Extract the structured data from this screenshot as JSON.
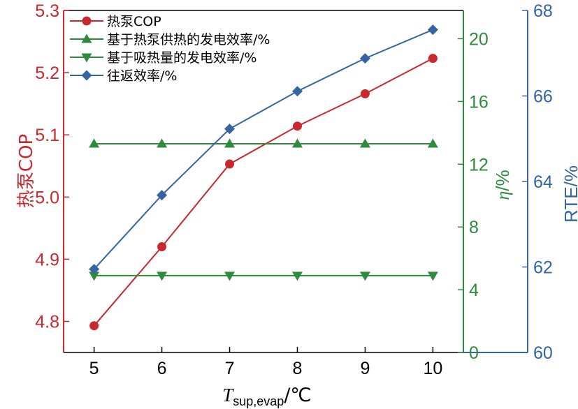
{
  "chart_data": {
    "type": "line",
    "x": [
      5,
      6,
      7,
      8,
      9,
      10
    ],
    "xlabel": {
      "symbol": "T",
      "subscript": "sup,evap",
      "unit": "/℃"
    },
    "xlim": [
      4.55,
      10.45
    ],
    "axes": [
      {
        "id": "cop",
        "label": "热泵COP",
        "color": "#c8282e",
        "lim": [
          4.75,
          5.3
        ],
        "ticks": [
          4.8,
          4.9,
          5.0,
          5.1,
          5.2,
          5.3
        ],
        "tick_labels": [
          "4.8",
          "4.9",
          "5.0",
          "5.1",
          "5.2",
          "5.3"
        ]
      },
      {
        "id": "eta",
        "label_symbol": "η",
        "label_unit": "/%",
        "color": "#2e8b3e",
        "lim": [
          0,
          21.8
        ],
        "ticks": [
          0,
          4,
          8,
          12,
          16,
          20
        ],
        "tick_labels": [
          "0",
          "4",
          "8",
          "12",
          "16",
          "20"
        ]
      },
      {
        "id": "rte",
        "label": "RTE/%",
        "color": "#3564a3",
        "lim": [
          60,
          68
        ],
        "ticks": [
          60,
          62,
          64,
          66,
          68
        ],
        "tick_labels": [
          "60",
          "62",
          "64",
          "66",
          "68"
        ]
      }
    ],
    "series": [
      {
        "name": "热泵COP",
        "axis": "cop",
        "marker": "circle",
        "color": "#c8282e",
        "values": [
          4.793,
          4.92,
          5.053,
          5.114,
          5.166,
          5.223
        ]
      },
      {
        "name": "基于热泵供热的发电效率/%",
        "axis": "eta",
        "marker": "triangle-up",
        "color": "#2e8b3e",
        "values": [
          13.3,
          13.3,
          13.3,
          13.3,
          13.3,
          13.3
        ]
      },
      {
        "name": "基于吸热量的发电效率/%",
        "axis": "eta",
        "marker": "triangle-down",
        "color": "#2e8b3e",
        "values": [
          4.9,
          4.9,
          4.9,
          4.9,
          4.9,
          4.9
        ]
      },
      {
        "name": "往返效率/%",
        "axis": "rte",
        "marker": "diamond",
        "color": "#3564a3",
        "values": [
          61.95,
          63.68,
          65.23,
          66.11,
          66.88,
          67.55
        ]
      }
    ],
    "x_ticks": [
      5,
      6,
      7,
      8,
      9,
      10
    ],
    "x_tick_labels": [
      "5",
      "6",
      "7",
      "8",
      "9",
      "10"
    ],
    "legend_position": "top-left"
  }
}
